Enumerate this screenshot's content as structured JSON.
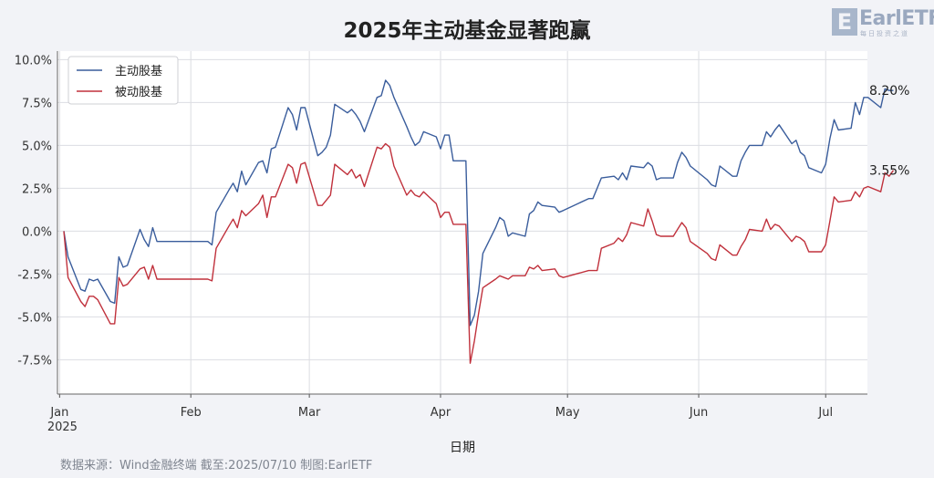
{
  "title": "2025年主动基金显著跑赢",
  "logo": {
    "text": "EarlETF",
    "mark": "E",
    "subtext": "每日投资之道"
  },
  "source": "数据来源：Wind金融终端 截至:2025/07/10 制图:EarlETF",
  "colors": {
    "active": "#3a5d9c",
    "passive": "#c0313c",
    "grid": "#dcdde2"
  },
  "chart_data": {
    "type": "line",
    "title": "2025年主动基金显著跑赢",
    "xlabel": "日期",
    "ylabel": "",
    "x_start": "2025-01-02",
    "x_end": "2025-07-10",
    "x_ticks": [
      {
        "date": "2025-01-01",
        "label": "Jan",
        "sublabel": "2025"
      },
      {
        "date": "2025-02-01",
        "label": "Feb",
        "sublabel": ""
      },
      {
        "date": "2025-03-01",
        "label": "Mar",
        "sublabel": ""
      },
      {
        "date": "2025-04-01",
        "label": "Apr",
        "sublabel": ""
      },
      {
        "date": "2025-05-01",
        "label": "May",
        "sublabel": ""
      },
      {
        "date": "2025-06-01",
        "label": "Jun",
        "sublabel": ""
      },
      {
        "date": "2025-07-01",
        "label": "Jul",
        "sublabel": ""
      }
    ],
    "y_ticks": [
      10.0,
      7.5,
      5.0,
      2.5,
      0.0,
      -2.5,
      -5.0,
      -7.5
    ],
    "y_tick_labels": [
      "10.0%",
      "7.5%",
      "5.0%",
      "2.5%",
      "0.0%",
      "-2.5%",
      "-5.0%",
      "-7.5%"
    ],
    "ylim": [
      -9.5,
      10.5
    ],
    "grid": true,
    "legend_position": "top-left",
    "series": [
      {
        "name": "主动股基",
        "color": "#3a5d9c",
        "end_label": "8.20%",
        "points": [
          [
            "2025-01-02",
            0.0
          ],
          [
            "2025-01-03",
            -1.5
          ],
          [
            "2025-01-06",
            -3.4
          ],
          [
            "2025-01-07",
            -3.5
          ],
          [
            "2025-01-08",
            -2.8
          ],
          [
            "2025-01-09",
            -2.9
          ],
          [
            "2025-01-10",
            -2.8
          ],
          [
            "2025-01-13",
            -4.1
          ],
          [
            "2025-01-14",
            -4.2
          ],
          [
            "2025-01-15",
            -1.5
          ],
          [
            "2025-01-16",
            -2.1
          ],
          [
            "2025-01-17",
            -2.0
          ],
          [
            "2025-01-20",
            0.1
          ],
          [
            "2025-01-21",
            -0.5
          ],
          [
            "2025-01-22",
            -0.9
          ],
          [
            "2025-01-23",
            0.2
          ],
          [
            "2025-01-24",
            -0.6
          ],
          [
            "2025-02-05",
            -0.6
          ],
          [
            "2025-02-06",
            -0.8
          ],
          [
            "2025-02-07",
            1.1
          ],
          [
            "2025-02-10",
            2.4
          ],
          [
            "2025-02-11",
            2.8
          ],
          [
            "2025-02-12",
            2.3
          ],
          [
            "2025-02-13",
            3.5
          ],
          [
            "2025-02-14",
            2.7
          ],
          [
            "2025-02-17",
            4.0
          ],
          [
            "2025-02-18",
            4.1
          ],
          [
            "2025-02-19",
            3.4
          ],
          [
            "2025-02-20",
            4.8
          ],
          [
            "2025-02-21",
            4.9
          ],
          [
            "2025-02-24",
            7.2
          ],
          [
            "2025-02-25",
            6.8
          ],
          [
            "2025-02-26",
            5.9
          ],
          [
            "2025-02-27",
            7.2
          ],
          [
            "2025-02-28",
            7.2
          ],
          [
            "2025-03-03",
            4.4
          ],
          [
            "2025-03-04",
            4.6
          ],
          [
            "2025-03-05",
            4.9
          ],
          [
            "2025-03-06",
            5.6
          ],
          [
            "2025-03-07",
            7.4
          ],
          [
            "2025-03-10",
            6.9
          ],
          [
            "2025-03-11",
            7.1
          ],
          [
            "2025-03-12",
            6.8
          ],
          [
            "2025-03-13",
            6.4
          ],
          [
            "2025-03-14",
            5.8
          ],
          [
            "2025-03-17",
            7.8
          ],
          [
            "2025-03-18",
            7.9
          ],
          [
            "2025-03-19",
            8.8
          ],
          [
            "2025-03-20",
            8.5
          ],
          [
            "2025-03-21",
            7.8
          ],
          [
            "2025-03-24",
            6.1
          ],
          [
            "2025-03-25",
            5.5
          ],
          [
            "2025-03-26",
            5.0
          ],
          [
            "2025-03-27",
            5.2
          ],
          [
            "2025-03-28",
            5.8
          ],
          [
            "2025-03-31",
            5.5
          ],
          [
            "2025-04-01",
            4.8
          ],
          [
            "2025-04-02",
            5.6
          ],
          [
            "2025-04-03",
            5.6
          ],
          [
            "2025-04-04",
            4.1
          ],
          [
            "2025-04-07",
            4.1
          ],
          [
            "2025-04-08",
            -5.5
          ],
          [
            "2025-04-09",
            -4.9
          ],
          [
            "2025-04-10",
            -3.5
          ],
          [
            "2025-04-11",
            -1.3
          ],
          [
            "2025-04-14",
            0.2
          ],
          [
            "2025-04-15",
            0.8
          ],
          [
            "2025-04-16",
            0.6
          ],
          [
            "2025-04-17",
            -0.3
          ],
          [
            "2025-04-18",
            -0.1
          ],
          [
            "2025-04-21",
            -0.3
          ],
          [
            "2025-04-22",
            1.0
          ],
          [
            "2025-04-23",
            1.2
          ],
          [
            "2025-04-24",
            1.7
          ],
          [
            "2025-04-25",
            1.5
          ],
          [
            "2025-04-28",
            1.4
          ],
          [
            "2025-04-29",
            1.1
          ],
          [
            "2025-04-30",
            1.2
          ],
          [
            "2025-05-06",
            1.9
          ],
          [
            "2025-05-07",
            1.9
          ],
          [
            "2025-05-08",
            2.5
          ],
          [
            "2025-05-09",
            3.1
          ],
          [
            "2025-05-12",
            3.2
          ],
          [
            "2025-05-13",
            3.0
          ],
          [
            "2025-05-14",
            3.4
          ],
          [
            "2025-05-15",
            3.0
          ],
          [
            "2025-05-16",
            3.8
          ],
          [
            "2025-05-19",
            3.7
          ],
          [
            "2025-05-20",
            4.0
          ],
          [
            "2025-05-21",
            3.8
          ],
          [
            "2025-05-22",
            3.0
          ],
          [
            "2025-05-23",
            3.1
          ],
          [
            "2025-05-26",
            3.1
          ],
          [
            "2025-05-27",
            4.0
          ],
          [
            "2025-05-28",
            4.6
          ],
          [
            "2025-05-29",
            4.3
          ],
          [
            "2025-05-30",
            3.8
          ],
          [
            "2025-06-03",
            3.0
          ],
          [
            "2025-06-04",
            2.7
          ],
          [
            "2025-06-05",
            2.6
          ],
          [
            "2025-06-06",
            3.8
          ],
          [
            "2025-06-09",
            3.2
          ],
          [
            "2025-06-10",
            3.2
          ],
          [
            "2025-06-11",
            4.1
          ],
          [
            "2025-06-12",
            4.6
          ],
          [
            "2025-06-13",
            5.0
          ],
          [
            "2025-06-16",
            5.0
          ],
          [
            "2025-06-17",
            5.8
          ],
          [
            "2025-06-18",
            5.5
          ],
          [
            "2025-06-19",
            5.9
          ],
          [
            "2025-06-20",
            6.2
          ],
          [
            "2025-06-23",
            5.1
          ],
          [
            "2025-06-24",
            5.3
          ],
          [
            "2025-06-25",
            4.6
          ],
          [
            "2025-06-26",
            4.4
          ],
          [
            "2025-06-27",
            3.7
          ],
          [
            "2025-06-30",
            3.4
          ],
          [
            "2025-07-01",
            3.9
          ],
          [
            "2025-07-02",
            5.4
          ],
          [
            "2025-07-03",
            6.5
          ],
          [
            "2025-07-04",
            5.9
          ],
          [
            "2025-07-07",
            6.0
          ],
          [
            "2025-07-08",
            7.5
          ],
          [
            "2025-07-09",
            6.8
          ],
          [
            "2025-07-10",
            7.8
          ],
          [
            "2025-07-11",
            7.8
          ],
          [
            "2025-07-14",
            7.2
          ],
          [
            "2025-07-15",
            8.3
          ],
          [
            "2025-07-16",
            8.2
          ],
          [
            "2025-07-17",
            8.2
          ]
        ]
      },
      {
        "name": "被动股基",
        "color": "#c0313c",
        "end_label": "3.55%",
        "points": [
          [
            "2025-01-02",
            0.0
          ],
          [
            "2025-01-03",
            -2.7
          ],
          [
            "2025-01-06",
            -4.1
          ],
          [
            "2025-01-07",
            -4.4
          ],
          [
            "2025-01-08",
            -3.8
          ],
          [
            "2025-01-09",
            -3.8
          ],
          [
            "2025-01-10",
            -4.0
          ],
          [
            "2025-01-13",
            -5.4
          ],
          [
            "2025-01-14",
            -5.4
          ],
          [
            "2025-01-15",
            -2.7
          ],
          [
            "2025-01-16",
            -3.2
          ],
          [
            "2025-01-17",
            -3.1
          ],
          [
            "2025-01-20",
            -2.2
          ],
          [
            "2025-01-21",
            -2.1
          ],
          [
            "2025-01-22",
            -2.8
          ],
          [
            "2025-01-23",
            -2.0
          ],
          [
            "2025-01-24",
            -2.8
          ],
          [
            "2025-02-05",
            -2.8
          ],
          [
            "2025-02-06",
            -2.9
          ],
          [
            "2025-02-07",
            -1.0
          ],
          [
            "2025-02-10",
            0.3
          ],
          [
            "2025-02-11",
            0.7
          ],
          [
            "2025-02-12",
            0.2
          ],
          [
            "2025-02-13",
            1.2
          ],
          [
            "2025-02-14",
            0.9
          ],
          [
            "2025-02-17",
            1.6
          ],
          [
            "2025-02-18",
            2.1
          ],
          [
            "2025-02-19",
            0.8
          ],
          [
            "2025-02-20",
            2.0
          ],
          [
            "2025-02-21",
            2.0
          ],
          [
            "2025-02-24",
            3.9
          ],
          [
            "2025-02-25",
            3.7
          ],
          [
            "2025-02-26",
            2.8
          ],
          [
            "2025-02-27",
            3.9
          ],
          [
            "2025-02-28",
            4.0
          ],
          [
            "2025-03-03",
            1.5
          ],
          [
            "2025-03-04",
            1.5
          ],
          [
            "2025-03-05",
            1.8
          ],
          [
            "2025-03-06",
            2.1
          ],
          [
            "2025-03-07",
            3.9
          ],
          [
            "2025-03-10",
            3.3
          ],
          [
            "2025-03-11",
            3.6
          ],
          [
            "2025-03-12",
            3.1
          ],
          [
            "2025-03-13",
            3.3
          ],
          [
            "2025-03-14",
            2.6
          ],
          [
            "2025-03-17",
            4.9
          ],
          [
            "2025-03-18",
            4.8
          ],
          [
            "2025-03-19",
            5.1
          ],
          [
            "2025-03-20",
            4.9
          ],
          [
            "2025-03-21",
            3.8
          ],
          [
            "2025-03-24",
            2.1
          ],
          [
            "2025-03-25",
            2.4
          ],
          [
            "2025-03-26",
            2.1
          ],
          [
            "2025-03-27",
            2.0
          ],
          [
            "2025-03-28",
            2.3
          ],
          [
            "2025-03-31",
            1.6
          ],
          [
            "2025-04-01",
            0.8
          ],
          [
            "2025-04-02",
            1.1
          ],
          [
            "2025-04-03",
            1.1
          ],
          [
            "2025-04-04",
            0.4
          ],
          [
            "2025-04-07",
            0.4
          ],
          [
            "2025-04-08",
            -7.7
          ],
          [
            "2025-04-09",
            -6.4
          ],
          [
            "2025-04-10",
            -4.8
          ],
          [
            "2025-04-11",
            -3.3
          ],
          [
            "2025-04-14",
            -2.8
          ],
          [
            "2025-04-15",
            -2.6
          ],
          [
            "2025-04-16",
            -2.7
          ],
          [
            "2025-04-17",
            -2.8
          ],
          [
            "2025-04-18",
            -2.6
          ],
          [
            "2025-04-21",
            -2.6
          ],
          [
            "2025-04-22",
            -2.1
          ],
          [
            "2025-04-23",
            -2.2
          ],
          [
            "2025-04-24",
            -2.0
          ],
          [
            "2025-04-25",
            -2.3
          ],
          [
            "2025-04-28",
            -2.2
          ],
          [
            "2025-04-29",
            -2.6
          ],
          [
            "2025-04-30",
            -2.7
          ],
          [
            "2025-05-06",
            -2.3
          ],
          [
            "2025-05-07",
            -2.3
          ],
          [
            "2025-05-08",
            -2.3
          ],
          [
            "2025-05-09",
            -1.0
          ],
          [
            "2025-05-12",
            -0.7
          ],
          [
            "2025-05-13",
            -0.4
          ],
          [
            "2025-05-14",
            -0.6
          ],
          [
            "2025-05-15",
            -0.2
          ],
          [
            "2025-05-16",
            0.5
          ],
          [
            "2025-05-19",
            0.3
          ],
          [
            "2025-05-20",
            1.3
          ],
          [
            "2025-05-21",
            0.6
          ],
          [
            "2025-05-22",
            -0.2
          ],
          [
            "2025-05-23",
            -0.3
          ],
          [
            "2025-05-26",
            -0.3
          ],
          [
            "2025-05-27",
            0.1
          ],
          [
            "2025-05-28",
            0.5
          ],
          [
            "2025-05-29",
            0.2
          ],
          [
            "2025-05-30",
            -0.6
          ],
          [
            "2025-06-03",
            -1.3
          ],
          [
            "2025-06-04",
            -1.6
          ],
          [
            "2025-06-05",
            -1.7
          ],
          [
            "2025-06-06",
            -0.8
          ],
          [
            "2025-06-09",
            -1.4
          ],
          [
            "2025-06-10",
            -1.4
          ],
          [
            "2025-06-11",
            -0.9
          ],
          [
            "2025-06-12",
            -0.5
          ],
          [
            "2025-06-13",
            0.1
          ],
          [
            "2025-06-16",
            0.0
          ],
          [
            "2025-06-17",
            0.7
          ],
          [
            "2025-06-18",
            0.1
          ],
          [
            "2025-06-19",
            0.4
          ],
          [
            "2025-06-20",
            0.3
          ],
          [
            "2025-06-23",
            -0.6
          ],
          [
            "2025-06-24",
            -0.3
          ],
          [
            "2025-06-25",
            -0.4
          ],
          [
            "2025-06-26",
            -0.6
          ],
          [
            "2025-06-27",
            -1.2
          ],
          [
            "2025-06-30",
            -1.2
          ],
          [
            "2025-07-01",
            -0.8
          ],
          [
            "2025-07-02",
            0.6
          ],
          [
            "2025-07-03",
            2.0
          ],
          [
            "2025-07-04",
            1.7
          ],
          [
            "2025-07-07",
            1.8
          ],
          [
            "2025-07-08",
            2.3
          ],
          [
            "2025-07-09",
            2.0
          ],
          [
            "2025-07-10",
            2.5
          ],
          [
            "2025-07-11",
            2.6
          ],
          [
            "2025-07-14",
            2.3
          ],
          [
            "2025-07-15",
            3.4
          ],
          [
            "2025-07-16",
            3.2
          ],
          [
            "2025-07-17",
            3.55
          ]
        ]
      }
    ]
  }
}
